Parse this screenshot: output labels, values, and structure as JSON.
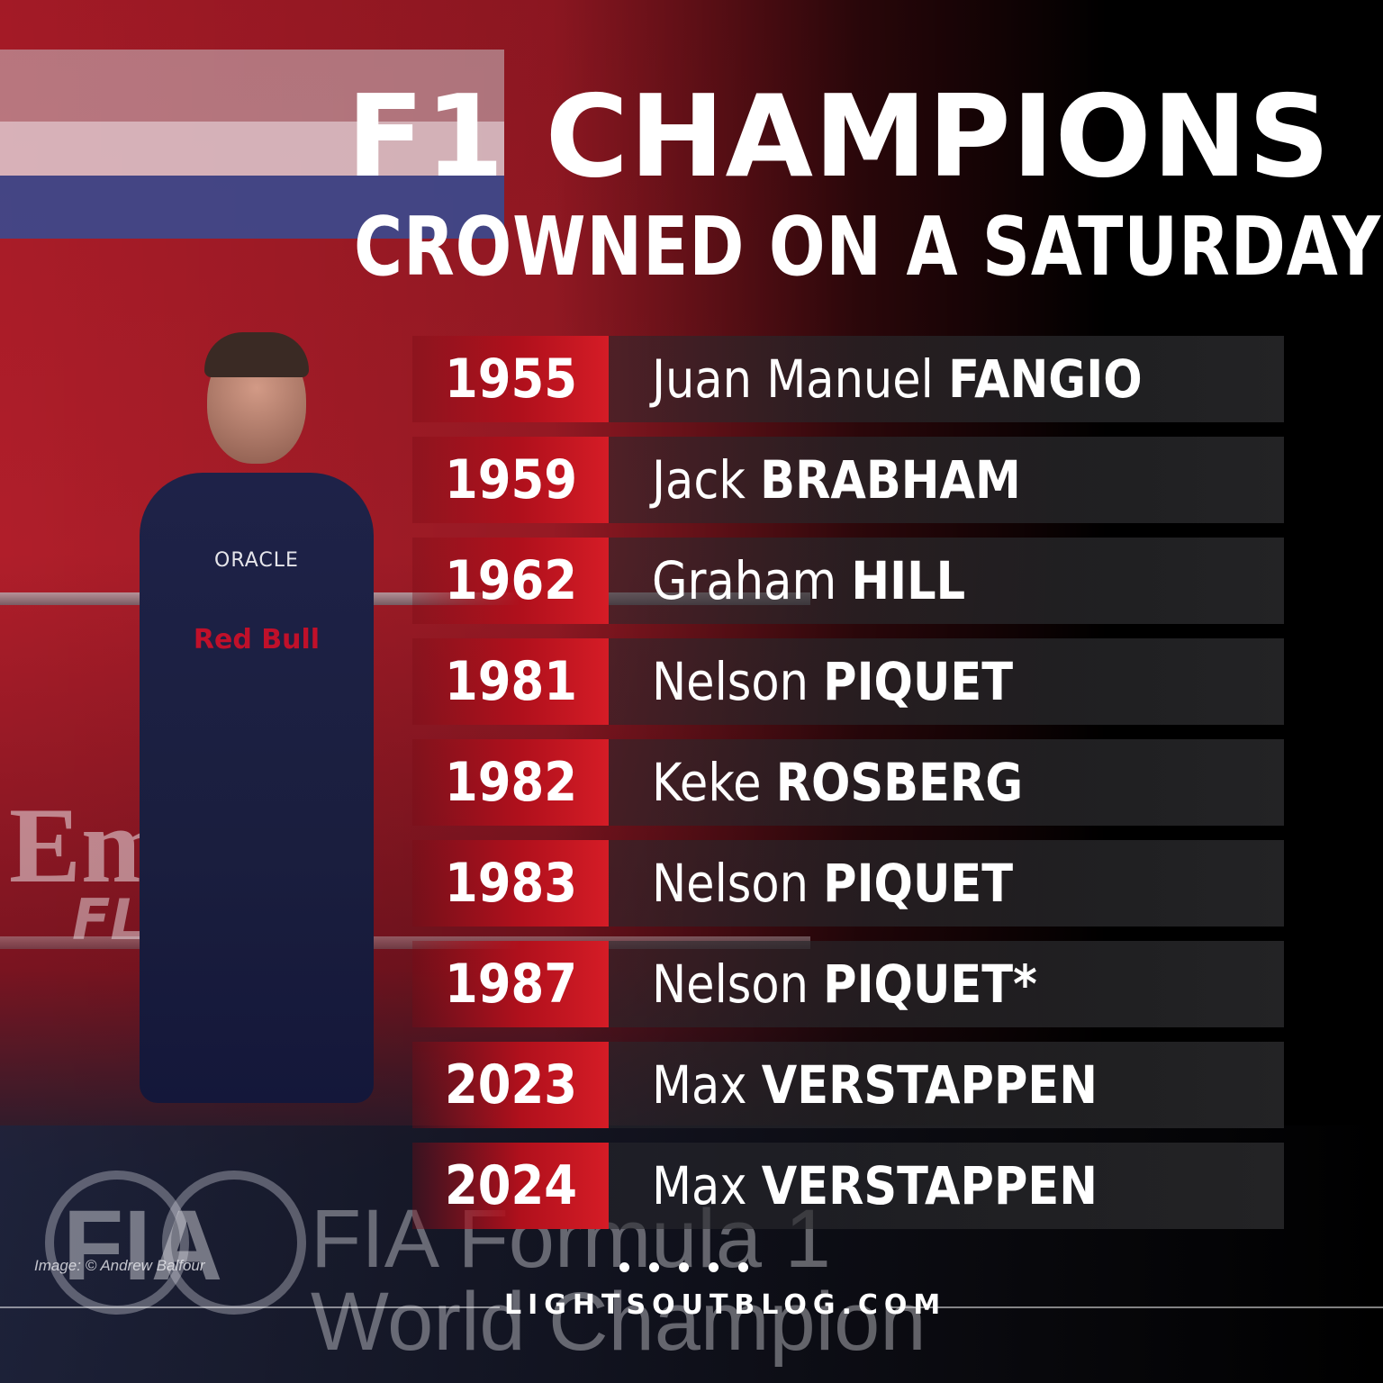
{
  "title": {
    "line1": "F1 CHAMPIONS",
    "line2": "CROWNED ON A SATURDAY"
  },
  "champions": [
    {
      "year": "1955",
      "first": "Juan Manuel",
      "last": "FANGIO"
    },
    {
      "year": "1959",
      "first": "Jack",
      "last": "BRABHAM"
    },
    {
      "year": "1962",
      "first": "Graham",
      "last": "HILL"
    },
    {
      "year": "1981",
      "first": "Nelson",
      "last": "PIQUET"
    },
    {
      "year": "1982",
      "first": "Keke",
      "last": "ROSBERG"
    },
    {
      "year": "1983",
      "first": "Nelson",
      "last": "PIQUET"
    },
    {
      "year": "1987",
      "first": "Nelson",
      "last": "PIQUET*"
    },
    {
      "year": "2023",
      "first": "Max",
      "last": "VERSTAPPEN"
    },
    {
      "year": "2024",
      "first": "Max",
      "last": "VERSTAPPEN"
    }
  ],
  "footer": {
    "credit": "Image: © Andrew Balfour",
    "site": "LIGHTSOUTBLOG.COM"
  },
  "background": {
    "sponsor1": "ORACLE",
    "sponsor2": "Red Bull",
    "banner1": "Em      es",
    "banner2": "FLY        R",
    "logo_fia": "FIA",
    "logo_f1_line1": "FIA Formula 1",
    "logo_f1_line2": "World Champion"
  },
  "colors": {
    "year_red": "#d51c26",
    "row_dark": "#262628",
    "text": "#ffffff"
  }
}
